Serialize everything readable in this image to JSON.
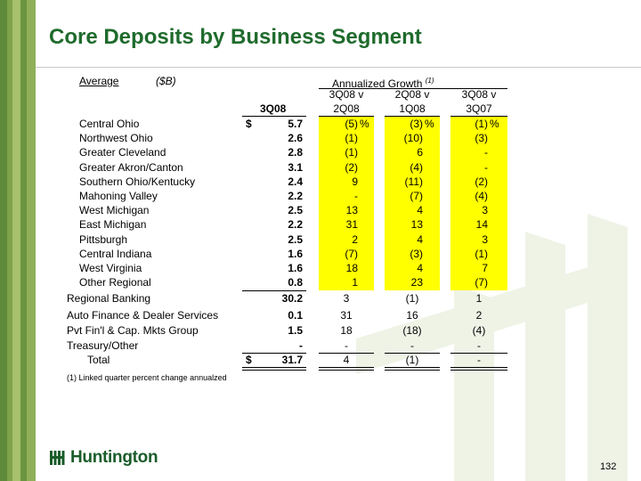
{
  "colors": {
    "title": "#1f6b2d",
    "highlight": "#ffff00",
    "sidebar_dark": "#5f8a3a",
    "sidebar_light": "#a7c16c",
    "logo": "#1a5c2a"
  },
  "title": "Core Deposits by Business Segment",
  "header": {
    "average": "Average",
    "unit": "($B)",
    "annualized": "Annualized Growth",
    "annualized_note": "(1)",
    "col_3q08": "3Q08",
    "g1_l1": "3Q08 v",
    "g1_l2": "2Q08",
    "g2_l1": "2Q08 v",
    "g2_l2": "1Q08",
    "g3_l1": "3Q08 v",
    "g3_l2": "3Q07"
  },
  "sub_rows": [
    {
      "name": "Central Ohio",
      "dollar": "$",
      "value": "5.7",
      "g1": "(5)",
      "g1p": "%",
      "g2": "(3)",
      "g2p": "%",
      "g3": "(1)",
      "g3p": "%"
    },
    {
      "name": "Northwest Ohio",
      "dollar": "",
      "value": "2.6",
      "g1": "(1)",
      "g1p": "",
      "g2": "(10)",
      "g2p": "",
      "g3": "(3)",
      "g3p": ""
    },
    {
      "name": "Greater Cleveland",
      "dollar": "",
      "value": "2.8",
      "g1": "(1)",
      "g1p": "",
      "g2": "6",
      "g2p": "",
      "g3": "-",
      "g3p": ""
    },
    {
      "name": "Greater Akron/Canton",
      "dollar": "",
      "value": "3.1",
      "g1": "(2)",
      "g1p": "",
      "g2": "(4)",
      "g2p": "",
      "g3": "-",
      "g3p": ""
    },
    {
      "name": "Southern Ohio/Kentucky",
      "dollar": "",
      "value": "2.4",
      "g1": "9",
      "g1p": "",
      "g2": "(11)",
      "g2p": "",
      "g3": "(2)",
      "g3p": ""
    },
    {
      "name": "Mahoning Valley",
      "dollar": "",
      "value": "2.2",
      "g1": "-",
      "g1p": "",
      "g2": "(7)",
      "g2p": "",
      "g3": "(4)",
      "g3p": ""
    },
    {
      "name": "West Michigan",
      "dollar": "",
      "value": "2.5",
      "g1": "13",
      "g1p": "",
      "g2": "4",
      "g2p": "",
      "g3": "3",
      "g3p": ""
    },
    {
      "name": "East Michigan",
      "dollar": "",
      "value": "2.2",
      "g1": "31",
      "g1p": "",
      "g2": "13",
      "g2p": "",
      "g3": "14",
      "g3p": ""
    },
    {
      "name": "Pittsburgh",
      "dollar": "",
      "value": "2.5",
      "g1": "2",
      "g1p": "",
      "g2": "4",
      "g2p": "",
      "g3": "3",
      "g3p": ""
    },
    {
      "name": "Central Indiana",
      "dollar": "",
      "value": "1.6",
      "g1": "(7)",
      "g1p": "",
      "g2": "(3)",
      "g2p": "",
      "g3": "(1)",
      "g3p": ""
    },
    {
      "name": "West Virginia",
      "dollar": "",
      "value": "1.6",
      "g1": "18",
      "g1p": "",
      "g2": "4",
      "g2p": "",
      "g3": "7",
      "g3p": ""
    },
    {
      "name": "Other Regional",
      "dollar": "",
      "value": "0.8",
      "g1": "1",
      "g1p": "",
      "g2": "23",
      "g2p": "",
      "g3": "(7)",
      "g3p": ""
    }
  ],
  "main_rows": [
    {
      "name": "Regional Banking",
      "dollar": "",
      "value": "30.2",
      "g1": "3",
      "g2": "(1)",
      "g3": "1"
    },
    {
      "name": "Auto Finance & Dealer Services",
      "dollar": "",
      "value": "0.1",
      "g1": "31",
      "g2": "16",
      "g3": "2"
    },
    {
      "name": "Pvt Fin'l & Cap. Mkts Group",
      "dollar": "",
      "value": "1.5",
      "g1": "18",
      "g2": "(18)",
      "g3": "(4)"
    },
    {
      "name": "Treasury/Other",
      "dollar": "",
      "value": "-",
      "g1": "-",
      "g2": "-",
      "g3": "-"
    },
    {
      "name": "Total",
      "dollar": "$",
      "value": "31.7",
      "g1": "4",
      "g2": "(1)",
      "g3": "-"
    }
  ],
  "footnote": "(1)  Linked quarter percent change annualzed",
  "logo_text": "Huntington",
  "page_number": "132"
}
